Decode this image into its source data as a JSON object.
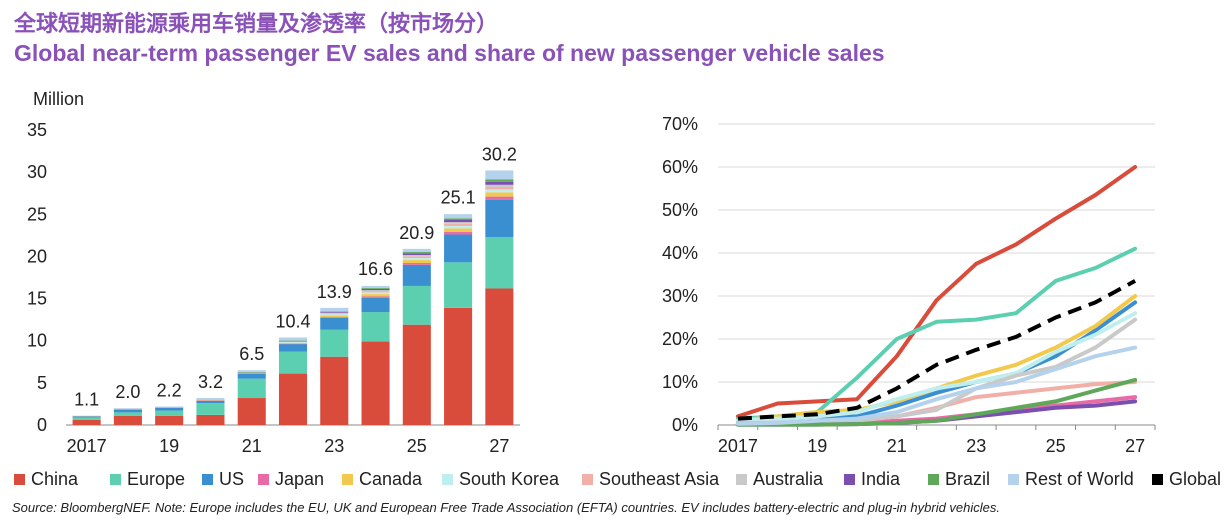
{
  "title_cn": "全球短期新能源乘用车销量及渗透率（按市场分）",
  "title_en": "Global near-term passenger EV sales and share of new passenger vehicle sales",
  "source": "Source: BloombergNEF. Note: Europe includes the EU, UK and European Free Trade Association (EFTA) countries. EV includes battery-electric and plug-in hybrid vehicles.",
  "legend": [
    {
      "label": "China",
      "color": "#d94b3a"
    },
    {
      "label": "Europe",
      "color": "#5ccfb1"
    },
    {
      "label": "US",
      "color": "#3a8fd0"
    },
    {
      "label": "Japan",
      "color": "#e86aa6"
    },
    {
      "label": "Canada",
      "color": "#f2c94c"
    },
    {
      "label": "South Korea",
      "color": "#bfeeee"
    },
    {
      "label": "Southeast Asia",
      "color": "#f0b0a8"
    },
    {
      "label": "Australia",
      "color": "#c9c9c9"
    },
    {
      "label": "India",
      "color": "#7a4fb0"
    },
    {
      "label": "Brazil",
      "color": "#5fa85a"
    },
    {
      "label": "Rest of World",
      "color": "#b4d2ec"
    },
    {
      "label": "Global",
      "color": "#000000"
    }
  ],
  "chart_data": [
    {
      "type": "bar",
      "stacked": true,
      "ylabel": "Million",
      "ylim": [
        0,
        35
      ],
      "yticks": [
        "0",
        "5",
        "10",
        "15",
        "20",
        "25",
        "30",
        "35"
      ],
      "categories": [
        "2017",
        "2018",
        "2019",
        "2020",
        "2021",
        "2022",
        "2023",
        "2024",
        "2025",
        "2026",
        "2027"
      ],
      "xtick_labels": [
        "2017",
        "",
        "19",
        "",
        "21",
        "",
        "23",
        "",
        "25",
        "",
        "27"
      ],
      "totals": [
        1.1,
        2.0,
        2.2,
        3.2,
        6.5,
        10.4,
        13.9,
        16.6,
        20.9,
        25.1,
        30.2
      ],
      "total_labels": [
        "1.1",
        "2.0",
        "2.2",
        "3.2",
        "6.5",
        "10.4",
        "13.9",
        "16.6",
        "20.9",
        "25.1",
        "30.2"
      ],
      "series": [
        {
          "name": "China",
          "values": [
            0.6,
            1.1,
            1.1,
            1.2,
            3.2,
            6.1,
            8.1,
            9.9,
            11.9,
            13.9,
            16.2
          ]
        },
        {
          "name": "Europe",
          "values": [
            0.3,
            0.4,
            0.6,
            1.4,
            2.3,
            2.6,
            3.2,
            3.5,
            4.6,
            5.4,
            6.1
          ]
        },
        {
          "name": "US",
          "values": [
            0.15,
            0.35,
            0.35,
            0.3,
            0.6,
            0.9,
            1.4,
            1.7,
            2.5,
            3.3,
            4.4
          ]
        },
        {
          "name": "Japan",
          "values": [
            0.03,
            0.02,
            0.02,
            0.02,
            0.02,
            0.05,
            0.1,
            0.15,
            0.22,
            0.3,
            0.4
          ]
        },
        {
          "name": "Canada",
          "values": [
            0.01,
            0.02,
            0.03,
            0.03,
            0.05,
            0.1,
            0.2,
            0.28,
            0.35,
            0.42,
            0.5
          ]
        },
        {
          "name": "South Korea",
          "values": [
            0.01,
            0.03,
            0.04,
            0.05,
            0.07,
            0.09,
            0.15,
            0.2,
            0.25,
            0.3,
            0.35
          ]
        },
        {
          "name": "Southeast Asia",
          "values": [
            0.0,
            0.01,
            0.01,
            0.01,
            0.02,
            0.05,
            0.1,
            0.15,
            0.2,
            0.25,
            0.3
          ]
        },
        {
          "name": "Australia",
          "values": [
            0.0,
            0.0,
            0.01,
            0.01,
            0.02,
            0.04,
            0.08,
            0.12,
            0.15,
            0.2,
            0.25
          ]
        },
        {
          "name": "India",
          "values": [
            0.0,
            0.0,
            0.0,
            0.0,
            0.01,
            0.05,
            0.1,
            0.15,
            0.2,
            0.25,
            0.35
          ]
        },
        {
          "name": "Brazil",
          "values": [
            0.0,
            0.0,
            0.0,
            0.0,
            0.01,
            0.03,
            0.05,
            0.1,
            0.15,
            0.2,
            0.3
          ]
        },
        {
          "name": "Rest of World",
          "values": [
            0.0,
            0.07,
            0.03,
            0.18,
            0.2,
            0.38,
            0.42,
            0.25,
            0.38,
            0.5,
            1.05
          ]
        }
      ]
    },
    {
      "type": "line",
      "ylim": [
        0,
        70
      ],
      "yticks": [
        "0%",
        "10%",
        "20%",
        "30%",
        "40%",
        "50%",
        "60%",
        "70%"
      ],
      "x": [
        "2017",
        "2018",
        "2019",
        "2020",
        "2021",
        "2022",
        "2023",
        "2024",
        "2025",
        "2026",
        "2027"
      ],
      "xtick_labels": [
        "2017",
        "",
        "19",
        "",
        "21",
        "",
        "23",
        "",
        "25",
        "",
        "27"
      ],
      "series": [
        {
          "name": "China",
          "values": [
            2,
            5,
            5.5,
            6,
            16,
            29,
            37.5,
            42,
            48,
            53.5,
            60
          ]
        },
        {
          "name": "Europe",
          "values": [
            1.5,
            2,
            3,
            11,
            20,
            24,
            24.5,
            26,
            33.5,
            36.5,
            41
          ]
        },
        {
          "name": "US",
          "values": [
            1,
            1.5,
            2,
            2,
            4.5,
            7.5,
            10,
            12,
            16,
            22,
            28.5
          ]
        },
        {
          "name": "Japan",
          "values": [
            0.5,
            0.5,
            0.5,
            0.5,
            1,
            1.5,
            2.5,
            3.5,
            4.5,
            5.5,
            6.5
          ]
        },
        {
          "name": "Canada",
          "values": [
            1,
            2,
            3,
            3.5,
            5.5,
            8.5,
            11.5,
            14,
            18,
            23,
            30
          ]
        },
        {
          "name": "South Korea",
          "values": [
            1,
            1.5,
            2,
            3,
            6,
            8.5,
            10,
            12,
            17,
            21,
            26
          ]
        },
        {
          "name": "Southeast Asia",
          "values": [
            0.5,
            0.5,
            1,
            1,
            2,
            4,
            6.5,
            7.5,
            8.5,
            9.5,
            10
          ]
        },
        {
          "name": "Australia",
          "values": [
            0.2,
            0.2,
            0.5,
            1,
            2,
            3.5,
            8.5,
            11.5,
            13.5,
            18,
            24.5
          ]
        },
        {
          "name": "India",
          "values": [
            0.1,
            0.1,
            0.1,
            0.2,
            0.5,
            1,
            2,
            3,
            4,
            4.5,
            5.5
          ]
        },
        {
          "name": "Brazil",
          "values": [
            0.1,
            0.1,
            0.1,
            0.2,
            0.5,
            1,
            2.5,
            4,
            5.5,
            8,
            10.5
          ]
        },
        {
          "name": "Rest of World",
          "values": [
            0.3,
            0.5,
            1,
            1.5,
            3,
            6,
            8.5,
            10,
            13,
            16,
            18
          ]
        },
        {
          "name": "Global",
          "values": [
            1.5,
            2,
            2.5,
            4,
            8.5,
            14,
            17.5,
            20.5,
            25,
            28.5,
            33.5
          ],
          "dashed": true
        }
      ]
    }
  ]
}
